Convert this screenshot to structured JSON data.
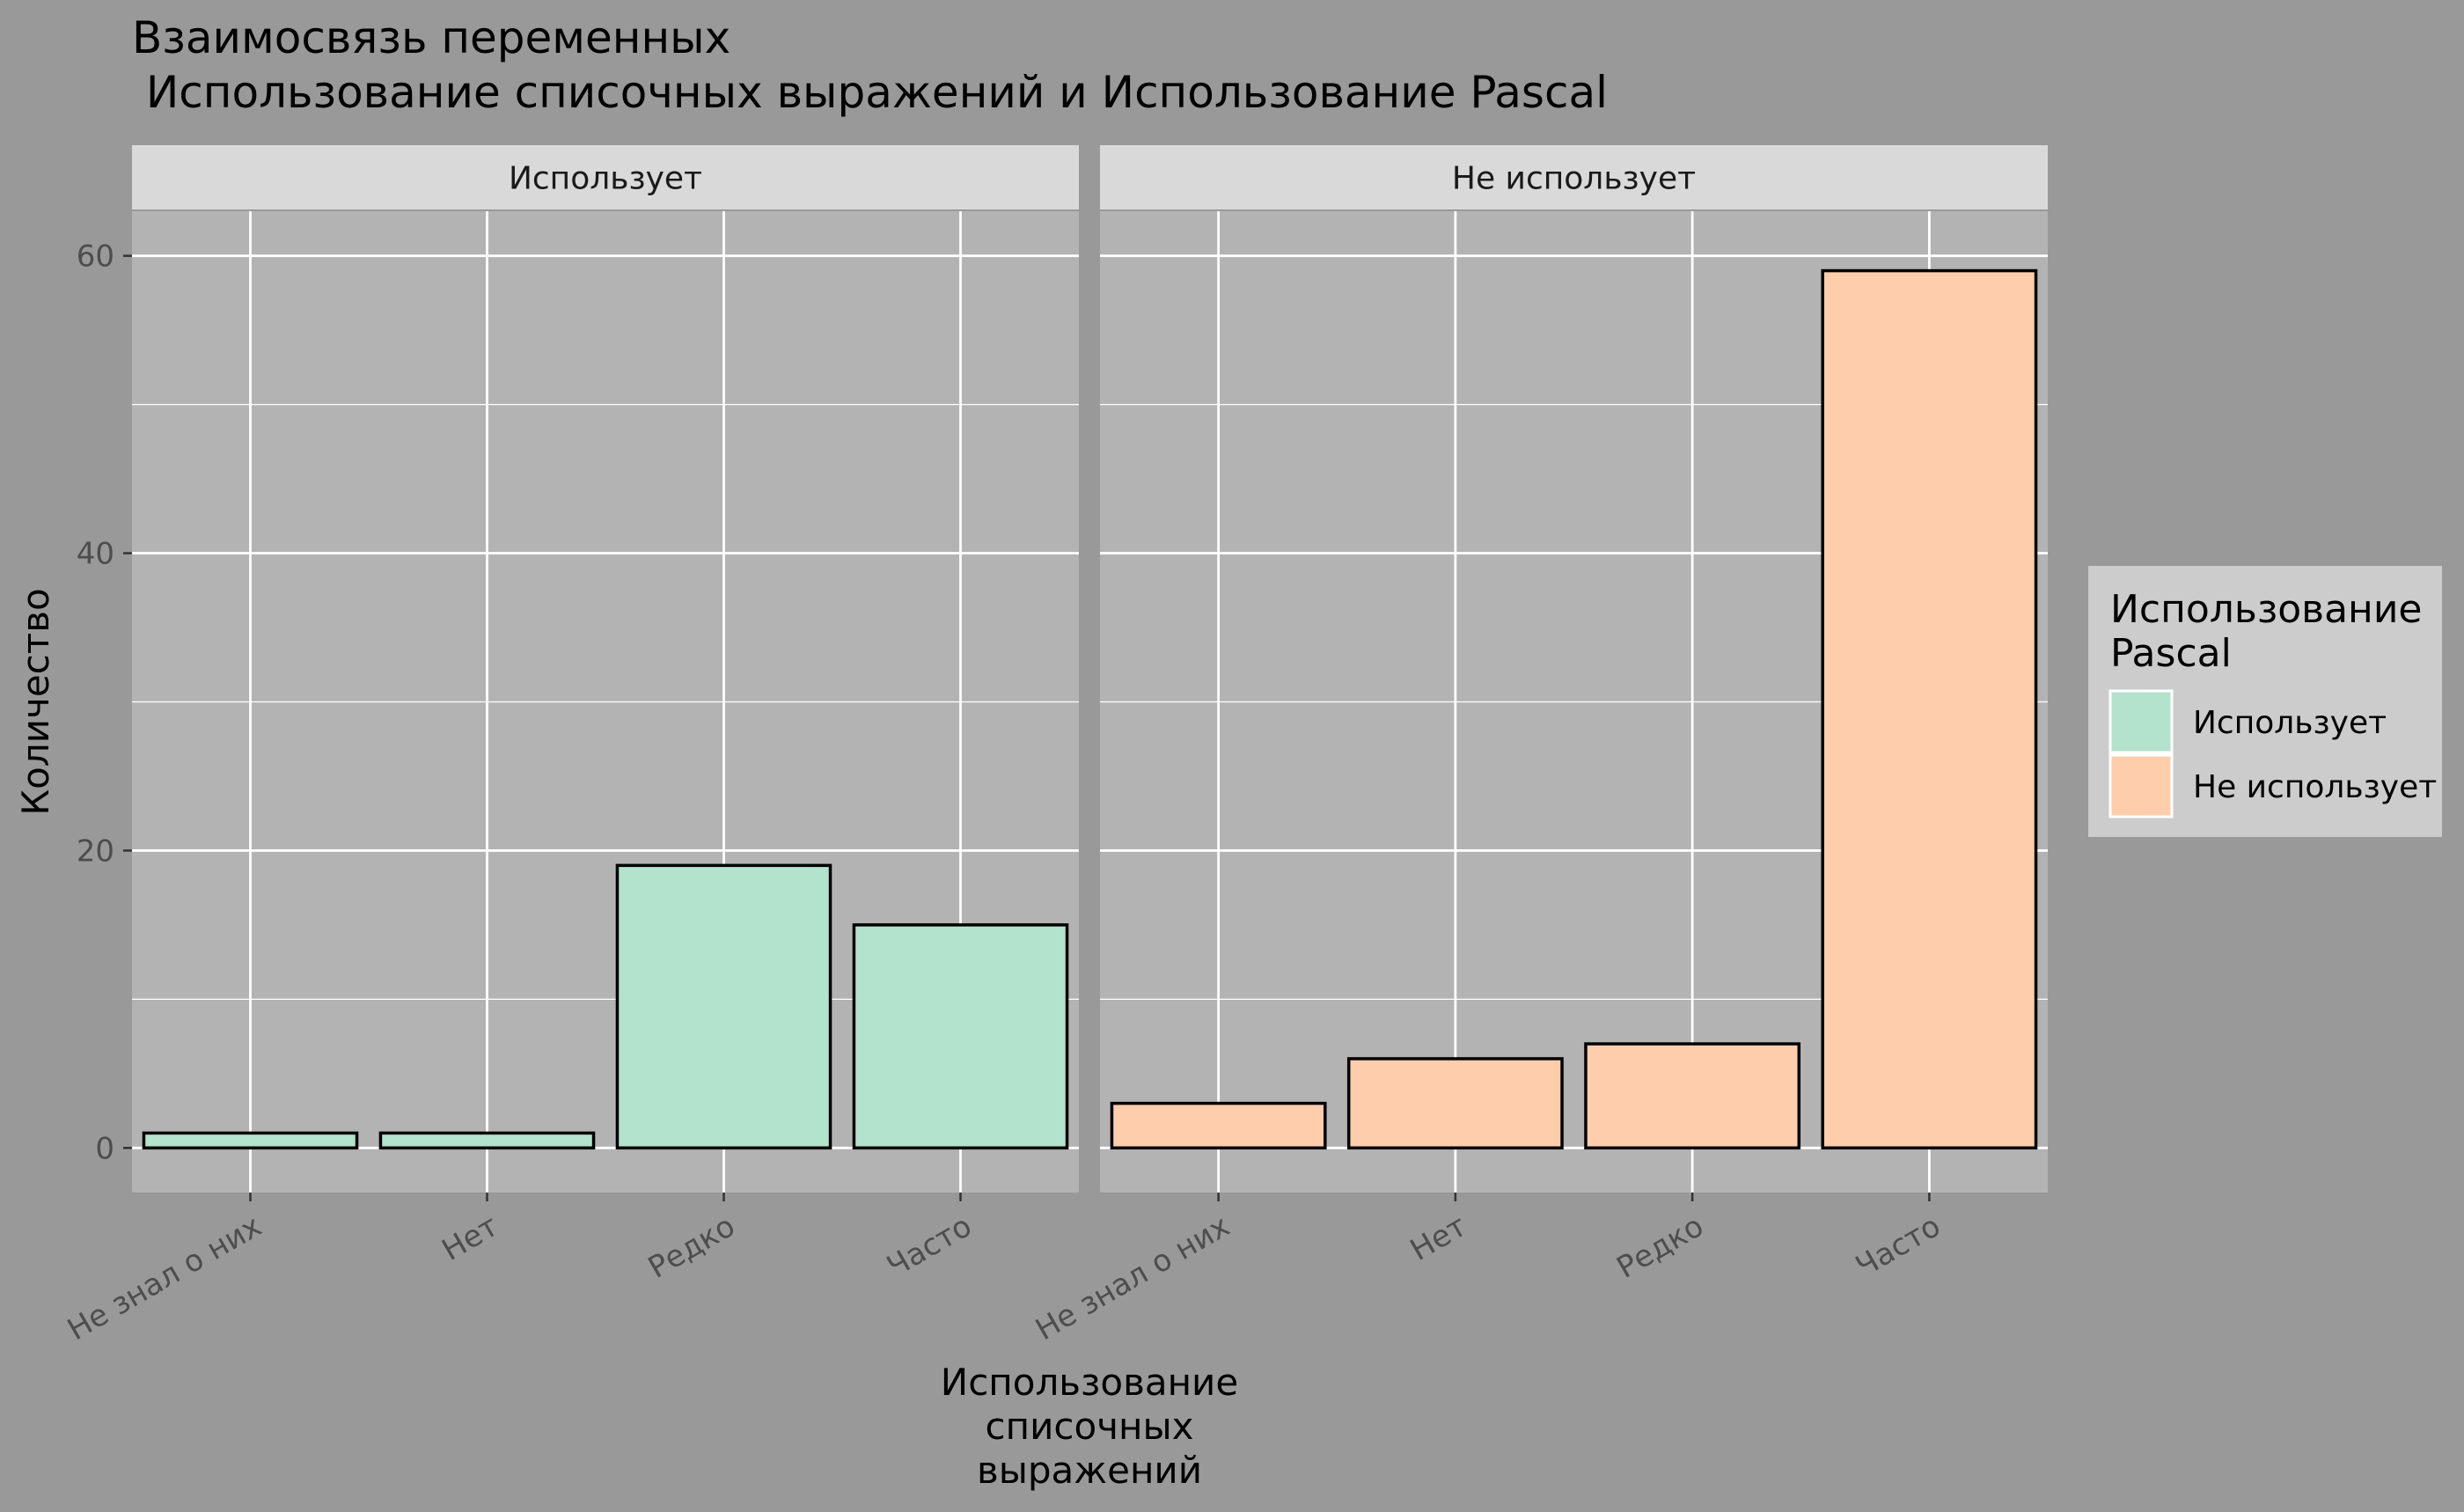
{
  "chart_data": {
    "type": "bar",
    "title": "Взаимосвязь переменных\n Использование списочных выражений и Использование Pascal",
    "xlabel": "Использование\nсписочных\nвыражений",
    "ylabel": "Количество",
    "categories": [
      "Не знал о них",
      "Нет",
      "Редко",
      "Часто"
    ],
    "ylim": [
      -3,
      63
    ],
    "yticks": [
      0,
      20,
      40,
      60
    ],
    "grid": true,
    "legend": {
      "title": "Использование\nPascal",
      "position": "right",
      "entries": [
        "Использует",
        "Не использует"
      ]
    },
    "facets": [
      {
        "label": "Использует",
        "series_name": "Использует",
        "values": [
          1,
          1,
          19,
          15
        ]
      },
      {
        "label": "Не использует",
        "series_name": "Не использует",
        "values": [
          3,
          6,
          7,
          59
        ]
      }
    ],
    "colors": {
      "Использует": "#b3e2cd",
      "Не использует": "#fdcdac",
      "panel_bg": "#b3b3b3",
      "strip_bg": "#d9d9d9",
      "plot_bg": "#999999",
      "grid": "#ffffff",
      "legend_bg": "#cccccc"
    }
  }
}
